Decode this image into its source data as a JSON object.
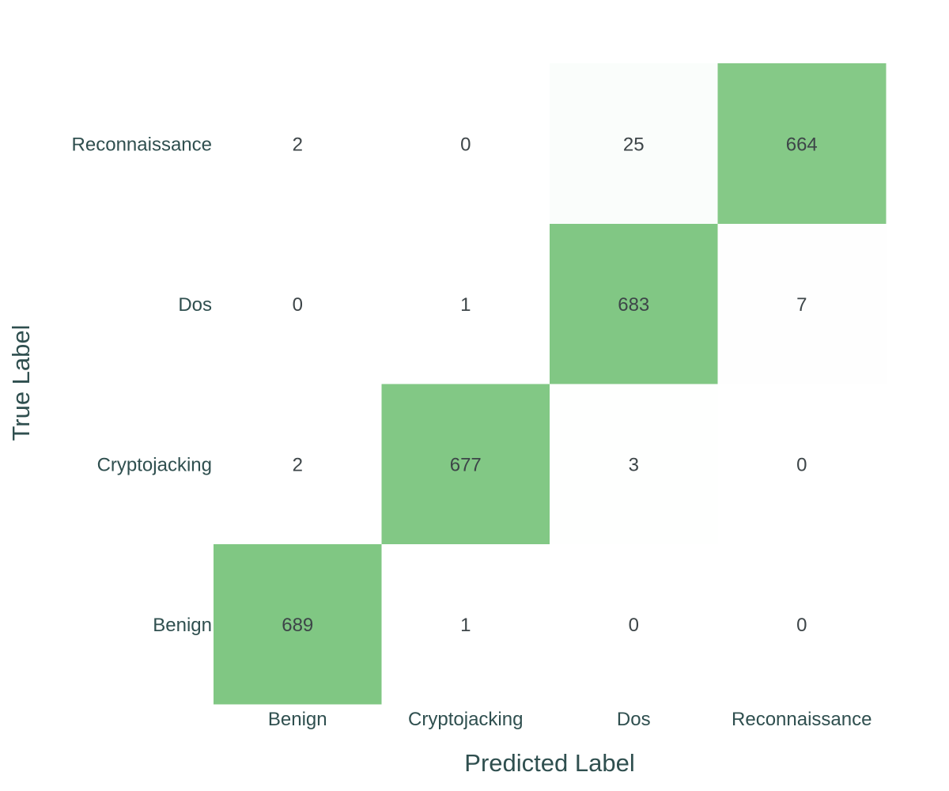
{
  "chart_data": {
    "type": "heatmap",
    "xlabel": "Predicted Label",
    "ylabel": "True Label",
    "x_categories": [
      "Benign",
      "Cryptojacking",
      "Dos",
      "Reconnaissance"
    ],
    "y_categories": [
      "Benign",
      "Cryptojacking",
      "Dos",
      "Reconnaissance"
    ],
    "z": [
      [
        689,
        1,
        0,
        0
      ],
      [
        2,
        677,
        3,
        0
      ],
      [
        0,
        1,
        683,
        7
      ],
      [
        2,
        0,
        25,
        664
      ]
    ],
    "colorscale": {
      "low": "#ffffff",
      "high": "#80c783"
    },
    "zmax": 689,
    "grid": false
  }
}
